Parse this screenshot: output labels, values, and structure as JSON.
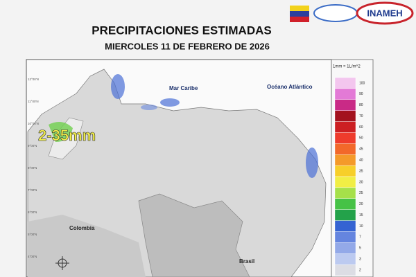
{
  "header": {
    "title": "PRECIPITACIONES ESTIMADAS",
    "subtitle": "MIERCOLES 11 DE FEBRERO DE 2026",
    "logo": "INAMEH"
  },
  "map": {
    "labels": [
      "Mar Caribe",
      "Océano Atlántico",
      "Colombia",
      "Brasil"
    ],
    "annotation": "2-35mm",
    "latitudes": [
      "12°00'N",
      "11°00'N",
      "10°00'N",
      "9°00'N",
      "8°00'N",
      "7°00'N",
      "6°00'N",
      "5°00'N",
      "4°00'N"
    ]
  },
  "legend": {
    "title": "1mm = 1L/m^2",
    "levels": [
      {
        "value": 100,
        "color": "#f3c6ee"
      },
      {
        "value": 90,
        "color": "#e37ad6"
      },
      {
        "value": 80,
        "color": "#c92a86"
      },
      {
        "value": 70,
        "color": "#a3121e"
      },
      {
        "value": 60,
        "color": "#cc1f22"
      },
      {
        "value": 50,
        "color": "#ee3b2c"
      },
      {
        "value": 45,
        "color": "#f2682a"
      },
      {
        "value": 40,
        "color": "#f49a2a"
      },
      {
        "value": 35,
        "color": "#f7cf2a"
      },
      {
        "value": 30,
        "color": "#f1ee45"
      },
      {
        "value": 25,
        "color": "#a6e04a"
      },
      {
        "value": 20,
        "color": "#46c246"
      },
      {
        "value": 15,
        "color": "#23a24a"
      },
      {
        "value": 10,
        "color": "#3563d2"
      },
      {
        "value": 7,
        "color": "#6585df"
      },
      {
        "value": 5,
        "color": "#93a9e8"
      },
      {
        "value": 3,
        "color": "#bccaf0"
      },
      {
        "value": 2,
        "color": "#dcdde4"
      }
    ]
  }
}
